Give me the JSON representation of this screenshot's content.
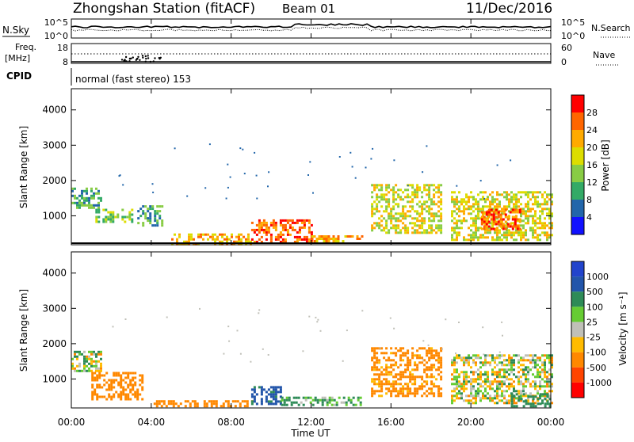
{
  "header": {
    "station": "Zhongshan Station (fitACF)",
    "beam": "Beam 01",
    "date": "11/Dec/2016"
  },
  "status_panel": {
    "nsky_label": "N.Sky",
    "nsky_ticks": [
      "10^5",
      "10^0"
    ],
    "nsearch_label": "N.Search",
    "nsearch_ticks": [
      "10^5",
      "10^0"
    ],
    "freq_label_line1": "Freq.",
    "freq_label_line2": "[MHz]",
    "freq_ticks": [
      "18",
      "8"
    ],
    "nave_label": "Nave",
    "nave_ticks": [
      "60",
      "0"
    ],
    "cpid_label": "CPID",
    "cpid_text": "normal (fast stereo) 153"
  },
  "axes": {
    "xlabel": "Time UT",
    "xticks": [
      "00:00",
      "04:00",
      "08:00",
      "12:00",
      "16:00",
      "20:00",
      "00:00"
    ],
    "ylabel": "Slant Range [km]",
    "yticks": [
      "4000",
      "3000",
      "2000",
      "1000"
    ]
  },
  "power_scale": {
    "label": "Power [dB]",
    "ticks": [
      "28",
      "24",
      "20",
      "16",
      "12",
      "8",
      "4"
    ],
    "colors": [
      "#ff0000",
      "#ff6600",
      "#ffaa00",
      "#dddd00",
      "#88cc44",
      "#33aa66",
      "#2266aa",
      "#1111ff"
    ]
  },
  "velocity_scale": {
    "label": "Velocity [m s⁻¹]",
    "ticks": [
      "1000",
      "500",
      "100",
      "25",
      "-25",
      "-100",
      "-500",
      "-1000"
    ],
    "colors": [
      "#2244cc",
      "#2255aa",
      "#2e8b57",
      "#66cc33",
      "#c0c0b8",
      "#ffbb00",
      "#ff8800",
      "#ff4400",
      "#ff0000"
    ]
  },
  "chart_data": [
    {
      "type": "heatmap",
      "panel": "power",
      "title": "Power [dB]",
      "xlabel": "Time UT",
      "ylabel": "Slant Range [km]",
      "xlim": [
        "00:00",
        "24:00"
      ],
      "ylim": [
        180,
        4600
      ],
      "scale": [
        4,
        28
      ],
      "regions": [
        {
          "t": [
            0.0,
            1.5
          ],
          "range": [
            1200,
            1800
          ],
          "level": 2
        },
        {
          "t": [
            1.2,
            3.0
          ],
          "range": [
            800,
            1200
          ],
          "level": 3
        },
        {
          "t": [
            3.3,
            4.5
          ],
          "range": [
            700,
            1300
          ],
          "level": 2
        },
        {
          "t": [
            5.0,
            9.0
          ],
          "range": [
            200,
            500
          ],
          "level": 5
        },
        {
          "t": [
            9.0,
            12.0
          ],
          "range": [
            250,
            900
          ],
          "level": 6
        },
        {
          "t": [
            12.0,
            14.5
          ],
          "range": [
            250,
            450
          ],
          "level": 5
        },
        {
          "t": [
            15.0,
            18.5
          ],
          "range": [
            500,
            1900
          ],
          "level": 4
        },
        {
          "t": [
            19.0,
            24.0
          ],
          "range": [
            300,
            1700
          ],
          "level": 4
        },
        {
          "t": [
            20.5,
            22.5
          ],
          "range": [
            600,
            1200
          ],
          "level": 6
        }
      ]
    },
    {
      "type": "heatmap",
      "panel": "velocity",
      "title": "Velocity [m s⁻¹]",
      "xlabel": "Time UT",
      "ylabel": "Slant Range [km]",
      "xlim": [
        "00:00",
        "24:00"
      ],
      "ylim": [
        180,
        4600
      ],
      "scale": [
        -1000,
        1000
      ],
      "regions": [
        {
          "t": [
            0.0,
            1.5
          ],
          "range": [
            1200,
            1800
          ],
          "velocity": 0
        },
        {
          "t": [
            1.0,
            3.5
          ],
          "range": [
            400,
            1200
          ],
          "velocity": -300
        },
        {
          "t": [
            4.0,
            9.0
          ],
          "range": [
            200,
            400
          ],
          "velocity": -300
        },
        {
          "t": [
            9.0,
            10.5
          ],
          "range": [
            300,
            800
          ],
          "velocity": 600
        },
        {
          "t": [
            10.5,
            14.5
          ],
          "range": [
            250,
            500
          ],
          "velocity": 150
        },
        {
          "t": [
            15.0,
            18.5
          ],
          "range": [
            500,
            1900
          ],
          "velocity": -200
        },
        {
          "t": [
            19.0,
            24.0
          ],
          "range": [
            300,
            1700
          ],
          "velocity": 0
        },
        {
          "t": [
            22.0,
            24.0
          ],
          "range": [
            200,
            600
          ],
          "velocity": 300
        }
      ]
    }
  ]
}
